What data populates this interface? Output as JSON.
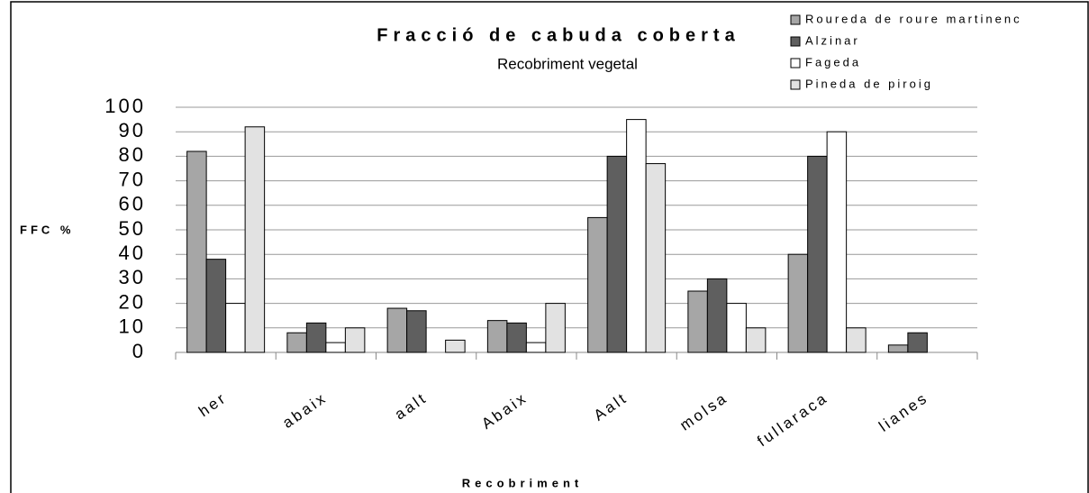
{
  "chart_data": {
    "type": "bar",
    "title": "Fracció de cabuda coberta",
    "subtitle": "Recobriment vegetal",
    "y_label": "FFC %",
    "x_label": "Recobriment",
    "categories": [
      "her",
      "abaix",
      "aalt",
      "Abaix",
      "Aalt",
      "molsa",
      "fullaraca",
      "lianes"
    ],
    "series": [
      {
        "name": "Roureda de roure martinenc",
        "color": "#a6a6a6",
        "values": [
          82,
          8,
          18,
          13,
          55,
          25,
          40,
          3
        ]
      },
      {
        "name": "Alzinar",
        "color": "#5f5f5f",
        "values": [
          38,
          12,
          17,
          12,
          80,
          30,
          80,
          8
        ]
      },
      {
        "name": "Fageda",
        "color": "#ffffff",
        "values": [
          20,
          4,
          0,
          4,
          95,
          20,
          90,
          0
        ]
      },
      {
        "name": "Pineda de piroig",
        "color": "#e2e2e2",
        "values": [
          92,
          10,
          5,
          20,
          77,
          10,
          10,
          0
        ]
      }
    ],
    "ylim": [
      0,
      100
    ],
    "yticks": [
      0,
      10,
      20,
      30,
      40,
      50,
      60,
      70,
      80,
      90,
      100
    ],
    "grid": true,
    "legend": "top-right"
  }
}
